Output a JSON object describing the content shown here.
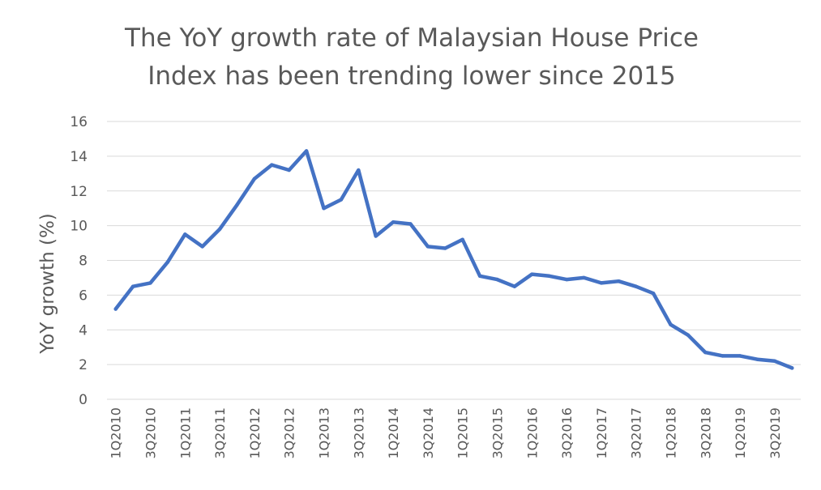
{
  "chart_data": {
    "type": "line",
    "title_lines": [
      "The YoY growth rate of Malaysian House Price",
      "Index has been trending lower since 2015"
    ],
    "xlabel": "",
    "ylabel": "YoY growth (%)",
    "ylim": [
      0,
      16
    ],
    "yticks": [
      0,
      2,
      4,
      6,
      8,
      10,
      12,
      14,
      16
    ],
    "grid": true,
    "legend": "none",
    "x": [
      "1Q2010",
      "2Q2010",
      "3Q2010",
      "4Q2010",
      "1Q2011",
      "2Q2011",
      "3Q2011",
      "4Q2011",
      "1Q2012",
      "2Q2012",
      "3Q2012",
      "4Q2012",
      "1Q2013",
      "2Q2013",
      "3Q2013",
      "4Q2013",
      "1Q2014",
      "2Q2014",
      "3Q2014",
      "4Q2014",
      "1Q2015",
      "2Q2015",
      "3Q2015",
      "4Q2015",
      "1Q2016",
      "2Q2016",
      "3Q2016",
      "4Q2016",
      "1Q2017",
      "2Q2017",
      "3Q2017",
      "4Q2017",
      "1Q2018",
      "2Q2018",
      "3Q2018",
      "4Q2018",
      "1Q2019",
      "2Q2019",
      "3Q2019",
      "4Q2019"
    ],
    "x_tick_labels": [
      "1Q2010",
      "3Q2010",
      "1Q2011",
      "3Q2011",
      "1Q2012",
      "3Q2012",
      "1Q2013",
      "3Q2013",
      "1Q2014",
      "3Q2014",
      "1Q2015",
      "3Q2015",
      "1Q2016",
      "3Q2016",
      "1Q2017",
      "3Q2017",
      "1Q2018",
      "3Q2018",
      "1Q2019",
      "3Q2019"
    ],
    "series": [
      {
        "color": "#4472c4",
        "values": [
          5.2,
          6.5,
          6.7,
          7.9,
          9.5,
          8.8,
          9.8,
          11.2,
          12.7,
          13.5,
          13.2,
          14.3,
          11.0,
          11.5,
          13.2,
          9.4,
          10.2,
          10.1,
          8.8,
          8.7,
          9.2,
          7.1,
          6.9,
          6.5,
          7.2,
          7.1,
          6.9,
          7.0,
          6.7,
          6.8,
          6.5,
          6.1,
          4.3,
          3.7,
          2.7,
          2.5,
          2.5,
          2.3,
          2.2,
          1.8
        ]
      }
    ]
  }
}
